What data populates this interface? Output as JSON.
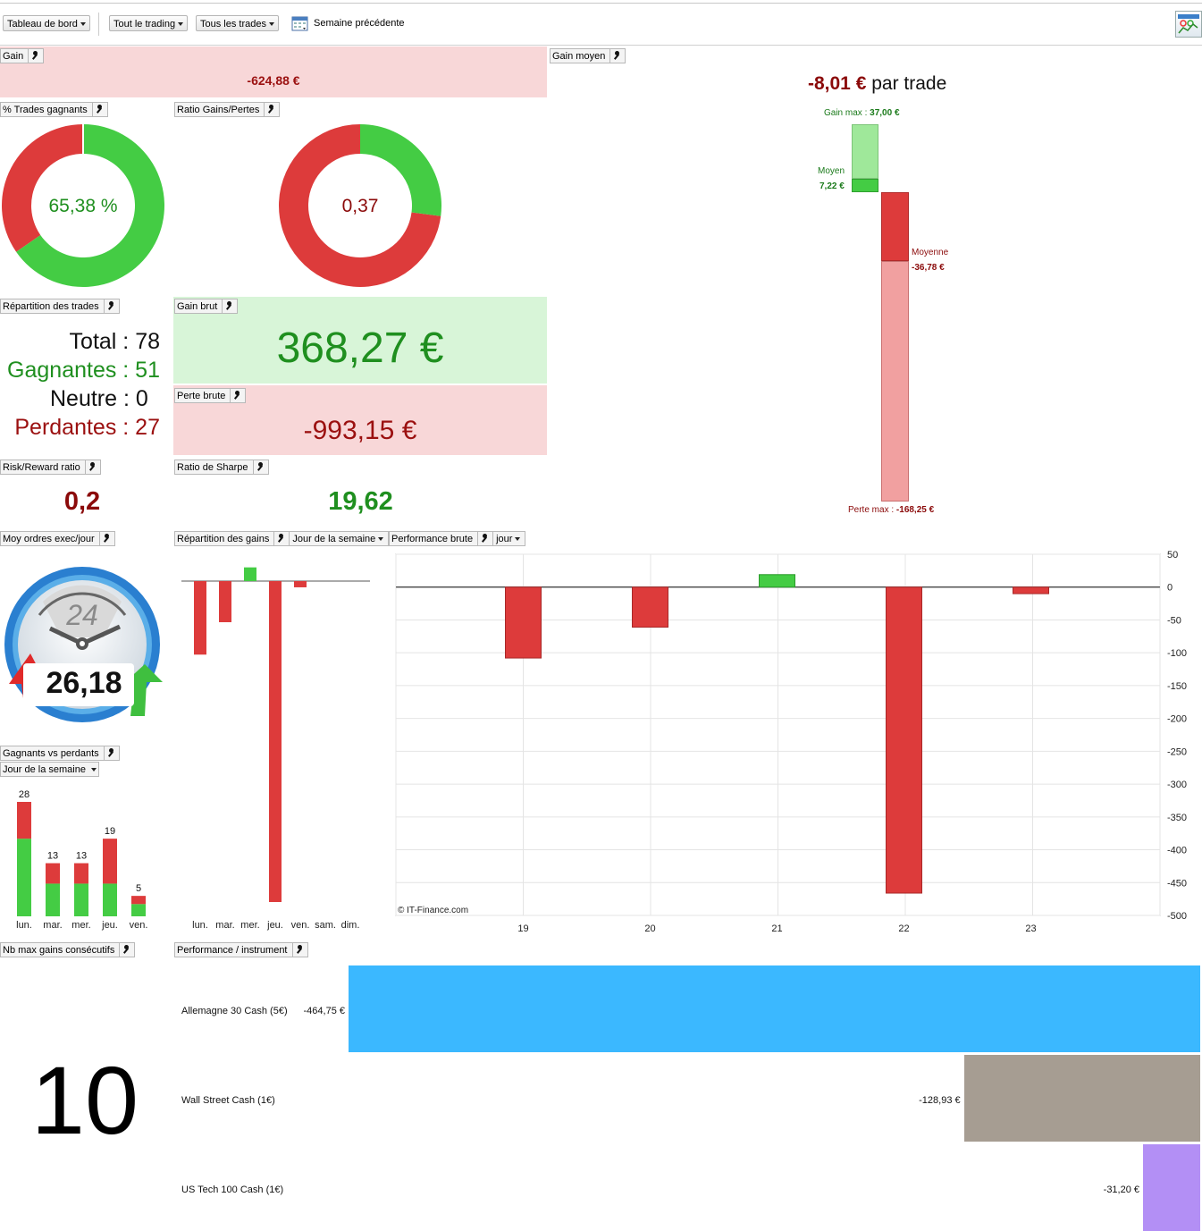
{
  "toolbar": {
    "dashboard": "Tableau de bord",
    "all_trading": "Tout le trading",
    "all_trades": "Tous les trades",
    "period": "Semaine précédente"
  },
  "widgets": {
    "gain": {
      "label": "Gain",
      "value": "-624,88 €"
    },
    "gain_moyen": {
      "label": "Gain moyen",
      "value": "-8,01 €",
      "suffix": "par trade",
      "gain_max_label": "Gain max :",
      "gain_max": "37,00 €",
      "moyen_label": "Moyen",
      "moyen": "7,22 €",
      "moyenne_label": "Moyenne",
      "moyenne": "-36,78 €",
      "perte_max_label": "Perte max :",
      "perte_max": "-168,25 €"
    },
    "pct_win": {
      "label": "% Trades gagnants",
      "value": "65,38 %",
      "fraction": 0.6538
    },
    "ratio_gp": {
      "label": "Ratio Gains/Pertes",
      "value": "0,37",
      "fraction": 0.2705
    },
    "repartition": {
      "label": "Répartition des trades",
      "total": "Total : 78",
      "gagnantes": "Gagnantes : 51",
      "neutre": "Neutre : 0",
      "perdantes": "Perdantes : 27"
    },
    "gain_brut": {
      "label": "Gain brut",
      "value": "368,27 €"
    },
    "perte_brute": {
      "label": "Perte brute",
      "value": "-993,15 €"
    },
    "risk_reward": {
      "label": "Risk/Reward ratio",
      "value": "0,2"
    },
    "sharpe": {
      "label": "Ratio de Sharpe",
      "value": "19,62"
    },
    "moy_ordres": {
      "label": "Moy ordres exec/jour",
      "value": "26,18",
      "clock_num": "24"
    },
    "repart_gains": {
      "label": "Répartition des gains",
      "dropdown": "Jour de la semaine"
    },
    "perf_brute": {
      "label": "Performance brute",
      "dropdown": "jour",
      "copyright": "© IT-Finance.com"
    },
    "gvp": {
      "label": "Gagnants vs perdants",
      "dropdown": "Jour de la semaine"
    },
    "nb_max": {
      "label": "Nb max gains consécutifs",
      "value": "10"
    },
    "perf_instr": {
      "label": "Performance / instrument"
    }
  },
  "chart_data": [
    {
      "type": "bar",
      "title": "Répartition des gains",
      "categories": [
        "lun.",
        "mar.",
        "mer.",
        "jeu.",
        "ven.",
        "sam.",
        "dim."
      ],
      "values": [
        -118,
        -66,
        22,
        -515,
        -10,
        0,
        0
      ],
      "colors": {
        "positive": "#44cc44",
        "negative": "#dd3b3b"
      }
    },
    {
      "type": "bar",
      "title": "Performance brute",
      "categories": [
        "19",
        "20",
        "21",
        "22",
        "23"
      ],
      "values": [
        -108,
        -61,
        19,
        -466,
        -10
      ],
      "ylim": [
        -500,
        50
      ],
      "yticks": [
        50,
        0,
        -50,
        -100,
        -150,
        -200,
        -250,
        -300,
        -350,
        -400,
        -450,
        -500
      ],
      "grid": true
    },
    {
      "type": "bar",
      "title": "Gagnants vs perdants",
      "categories": [
        "lun.",
        "mar.",
        "mer.",
        "jeu.",
        "ven."
      ],
      "series": [
        {
          "name": "Gagnants",
          "values": [
            19,
            8,
            8,
            8,
            3
          ],
          "color": "#44cc44"
        },
        {
          "name": "Perdants",
          "values": [
            9,
            5,
            5,
            11,
            2
          ],
          "color": "#dd3b3b"
        }
      ],
      "totals": [
        "28",
        "13",
        "13",
        "19",
        "5"
      ]
    },
    {
      "type": "bar",
      "title": "Performance / instrument",
      "categories": [
        "Allemagne 30 Cash (5€)",
        "Wall Street Cash (1€)",
        "US Tech 100 Cash (1€)"
      ],
      "values": [
        -464.75,
        -128.93,
        -31.2
      ],
      "labels": [
        "-464,75 €",
        "-128,93 €",
        "-31,20 €"
      ],
      "colors": [
        "#3bb8ff",
        "#a69d92",
        "#b38ff5"
      ]
    }
  ]
}
